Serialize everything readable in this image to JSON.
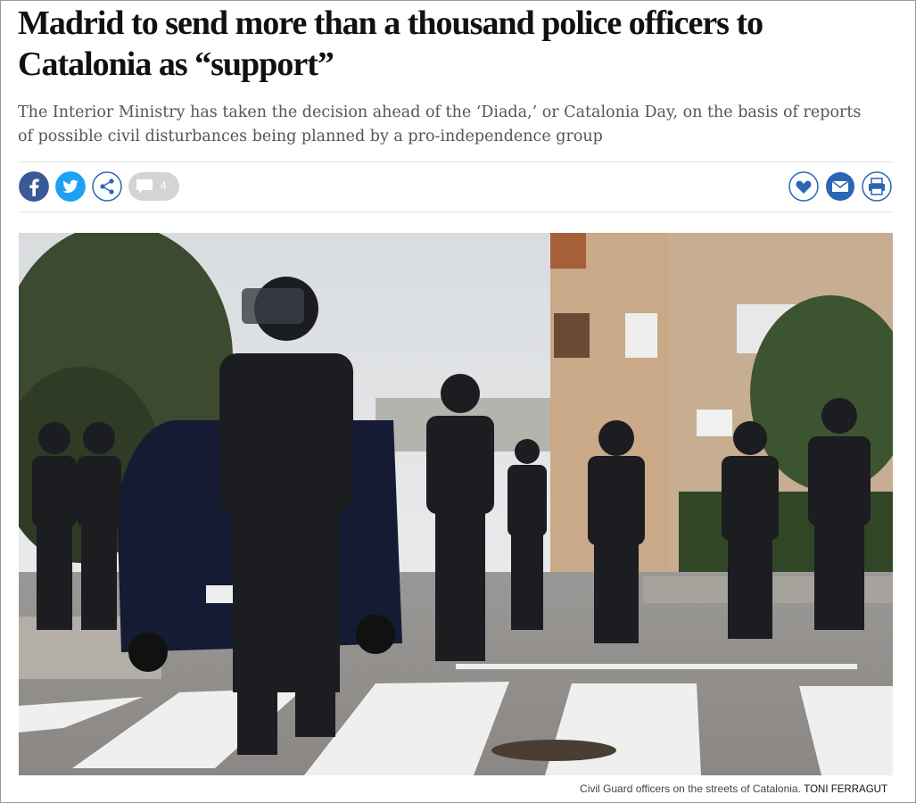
{
  "article": {
    "headline": "Madrid to send more than a thousand police officers to Catalonia as “support”",
    "subtitle": "The Interior Ministry has taken the decision ahead of the ‘Diada,’ or Catalonia Day, on the basis of reports of possible civil disturbances being planned by a pro-independence group",
    "comment_count": 4,
    "caption": "Civil Guard officers on the streets of Catalonia.",
    "photo_credit": "TONI FERRAGUT"
  }
}
